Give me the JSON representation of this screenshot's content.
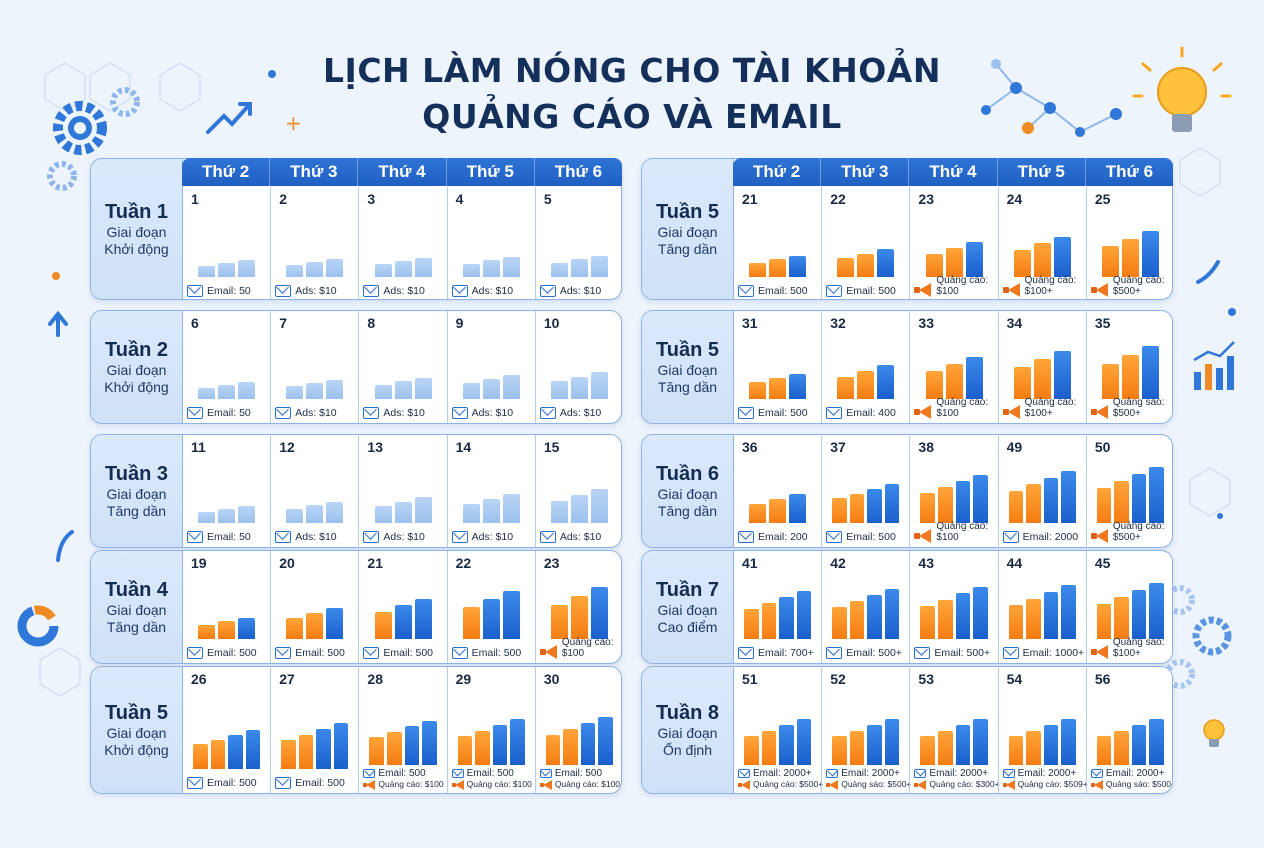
{
  "title_line1": "LỊCH LÀM NÓNG CHO TÀI KHOẢN",
  "title_line2": "QUẢNG CÁO VÀ EMAIL",
  "colors": {
    "accent_blue": "#1f5fc2",
    "accent_orange": "#f47c12",
    "light_bar": "#9cc1ee"
  },
  "left": {
    "days": [
      "Thứ 2",
      "Thứ 3",
      "Thứ 4",
      "Thứ 5",
      "Thứ 6"
    ],
    "weeks": [
      {
        "name": "Tuần 1",
        "phase": "Giai đoạn Khởi động",
        "cells": [
          {
            "num": "1",
            "label": "Email: 50",
            "icon": "mail-icon",
            "bars": "lll",
            "level": 0.3
          },
          {
            "num": "2",
            "label": "Ads: $10",
            "icon": "mail-icon",
            "bars": "lll",
            "level": 0.32
          },
          {
            "num": "3",
            "label": "Ads: $10",
            "icon": "mail-icon",
            "bars": "lll",
            "level": 0.34
          },
          {
            "num": "4",
            "label": "Ads: $10",
            "icon": "mail-icon",
            "bars": "lll",
            "level": 0.36
          },
          {
            "num": "5",
            "label": "Ads: $10",
            "icon": "mail-icon",
            "bars": "lll",
            "level": 0.38
          }
        ]
      },
      {
        "name": "Tuần 2",
        "phase": "Giai đoạn Khởi động",
        "cells": [
          {
            "num": "6",
            "label": "Email: 50",
            "icon": "mail-icon",
            "bars": "lll",
            "level": 0.3
          },
          {
            "num": "7",
            "label": "Ads: $10",
            "icon": "mail-icon",
            "bars": "lll",
            "level": 0.34
          },
          {
            "num": "8",
            "label": "Ads: $10",
            "icon": "mail-icon",
            "bars": "lll",
            "level": 0.38
          },
          {
            "num": "9",
            "label": "Ads: $10",
            "icon": "mail-icon",
            "bars": "lll",
            "level": 0.42
          },
          {
            "num": "10",
            "label": "Ads: $10",
            "icon": "mail-icon",
            "bars": "lll",
            "level": 0.48
          }
        ]
      },
      {
        "name": "Tuần 3",
        "phase": "Giai đoạn Tăng dần",
        "cells": [
          {
            "num": "11",
            "label": "Email: 50",
            "icon": "mail-icon",
            "bars": "lll",
            "level": 0.3
          },
          {
            "num": "12",
            "label": "Ads: $10",
            "icon": "mail-icon",
            "bars": "lll",
            "level": 0.38
          },
          {
            "num": "13",
            "label": "Ads: $10",
            "icon": "mail-icon",
            "bars": "lll",
            "level": 0.46
          },
          {
            "num": "14",
            "label": "Ads: $10",
            "icon": "mail-icon",
            "bars": "lll",
            "level": 0.52
          },
          {
            "num": "15",
            "label": "Ads: $10",
            "icon": "mail-icon",
            "bars": "lll",
            "level": 0.6
          }
        ]
      },
      {
        "name": "Tuần 4",
        "phase": "Giai đoạn Tăng dần",
        "cells": [
          {
            "num": "19",
            "label": "Email: 500",
            "icon": "mail-icon",
            "bars": "oob",
            "level": 0.38
          },
          {
            "num": "20",
            "label": "Email: 500",
            "icon": "mail-icon",
            "bars": "oob",
            "level": 0.55
          },
          {
            "num": "21",
            "label": "Email: 500",
            "icon": "mail-icon",
            "bars": "obb",
            "level": 0.72
          },
          {
            "num": "22",
            "label": "Email: 500",
            "icon": "mail-icon",
            "bars": "obb",
            "level": 0.85
          },
          {
            "num": "23",
            "label": "Quảng cáo: $100",
            "icon": "megaphone-icon",
            "bars": "oob",
            "level": 0.92
          }
        ]
      },
      {
        "name": "Tuần 5",
        "phase": "Giai đoạn Khởi động",
        "cells": [
          {
            "num": "26",
            "label": "Email: 500",
            "icon": "mail-icon",
            "bars": "oobb",
            "level": 0.7
          },
          {
            "num": "27",
            "label": "Email: 500",
            "icon": "mail-icon",
            "bars": "oobb",
            "level": 0.82
          },
          {
            "num": "28",
            "label": "Email: 500",
            "label2": "Quảng cáo: $100",
            "icon": "mail-icon",
            "bars": "oobb",
            "level": 0.92
          },
          {
            "num": "29",
            "label": "Email: 500",
            "label2": "Quảng cáo: $100",
            "icon": "mail-icon",
            "bars": "oobb",
            "level": 0.95
          },
          {
            "num": "30",
            "label": "Email: 500",
            "label2": "Quảng cáo: $100",
            "icon": "mail-icon",
            "bars": "oobb",
            "level": 1.0
          }
        ]
      }
    ]
  },
  "right": {
    "days": [
      "Thứ 2",
      "Thứ 3",
      "Thứ 4",
      "Thứ 5",
      "Thứ 6"
    ],
    "weeks": [
      {
        "name": "Tuần 5",
        "phase": "Giai đoạn Tăng dần",
        "cells": [
          {
            "num": "21",
            "label": "Email: 500",
            "icon": "mail-icon",
            "bars": "oob",
            "level": 0.38
          },
          {
            "num": "22",
            "label": "Email: 500",
            "icon": "mail-icon",
            "bars": "oob",
            "level": 0.5
          },
          {
            "num": "23",
            "label": "Quảng cáo: $100",
            "icon": "megaphone-icon",
            "bars": "oob",
            "level": 0.62
          },
          {
            "num": "24",
            "label": "Quảng cáo: $100+",
            "icon": "megaphone-icon",
            "bars": "oob",
            "level": 0.72
          },
          {
            "num": "25",
            "label": "Quảng cáo: $500+",
            "icon": "megaphone-icon",
            "bars": "oob",
            "level": 0.82
          }
        ]
      },
      {
        "name": "Tuần 5",
        "phase": "Giai đoạn Tăng dần",
        "cells": [
          {
            "num": "31",
            "label": "Email: 500",
            "icon": "mail-icon",
            "bars": "oob",
            "level": 0.45
          },
          {
            "num": "32",
            "label": "Email: 400",
            "icon": "mail-icon",
            "bars": "oob",
            "level": 0.6
          },
          {
            "num": "33",
            "label": "Quảng cáo: $100",
            "icon": "megaphone-icon",
            "bars": "oob",
            "level": 0.75
          },
          {
            "num": "34",
            "label": "Quảng cáo: $100+",
            "icon": "megaphone-icon",
            "bars": "oob",
            "level": 0.85
          },
          {
            "num": "35",
            "label": "Quảng sáo: $500+",
            "icon": "megaphone-icon",
            "bars": "oob",
            "level": 0.95
          }
        ]
      },
      {
        "name": "Tuần 6",
        "phase": "Giai đoạn Tăng dần",
        "cells": [
          {
            "num": "36",
            "label": "Email: 200",
            "icon": "mail-icon",
            "bars": "oob",
            "level": 0.52
          },
          {
            "num": "37",
            "label": "Email: 500",
            "icon": "mail-icon",
            "bars": "oobb",
            "level": 0.7
          },
          {
            "num": "38",
            "label": "Quảng cáo: $100",
            "icon": "megaphone-icon",
            "bars": "oobb",
            "level": 0.85
          },
          {
            "num": "49",
            "label": "Email: 2000",
            "icon": "mail-icon",
            "bars": "oobb",
            "level": 0.92
          },
          {
            "num": "50",
            "label": "Quảng cáo: $500+",
            "icon": "megaphone-icon",
            "bars": "oobb",
            "level": 1.0
          }
        ]
      },
      {
        "name": "Tuần 7",
        "phase": "Giai đoạn Cao điểm",
        "cells": [
          {
            "num": "41",
            "label": "Email: 700+",
            "icon": "mail-icon",
            "bars": "oobb",
            "level": 0.85
          },
          {
            "num": "42",
            "label": "Email: 500+",
            "icon": "mail-icon",
            "bars": "oobb",
            "level": 0.9
          },
          {
            "num": "43",
            "label": "Email: 500+",
            "icon": "mail-icon",
            "bars": "oobb",
            "level": 0.93
          },
          {
            "num": "44",
            "label": "Email: 1000+",
            "icon": "mail-icon",
            "bars": "oobb",
            "level": 0.96
          },
          {
            "num": "45",
            "label": "Quảng sáo: $100+",
            "icon": "megaphone-icon",
            "bars": "oobb",
            "level": 1.0
          }
        ]
      },
      {
        "name": "Tuần 8",
        "phase": "Giai đoạn Ổn định",
        "cells": [
          {
            "num": "51",
            "label": "Email: 2000+",
            "label2": "Quảng cáo: $500+",
            "icon": "mail-icon",
            "bars": "oobb",
            "level": 0.95
          },
          {
            "num": "52",
            "label": "Email: 2000+",
            "label2": "Quảng sáo: $500+",
            "icon": "mail-icon",
            "bars": "oobb",
            "level": 0.95
          },
          {
            "num": "53",
            "label": "Email: 2000+",
            "label2": "Quảng cáo: $300+",
            "icon": "mail-icon",
            "bars": "oobb",
            "level": 0.95
          },
          {
            "num": "54",
            "label": "Email: 2000+",
            "label2": "Quảng cáo: $509+",
            "icon": "mail-icon",
            "bars": "oobb",
            "level": 0.95
          },
          {
            "num": "56",
            "label": "Email: 2000+",
            "label2": "Quảng sáo: $500+",
            "icon": "mail-icon",
            "bars": "oobb",
            "level": 0.95
          }
        ]
      }
    ]
  }
}
